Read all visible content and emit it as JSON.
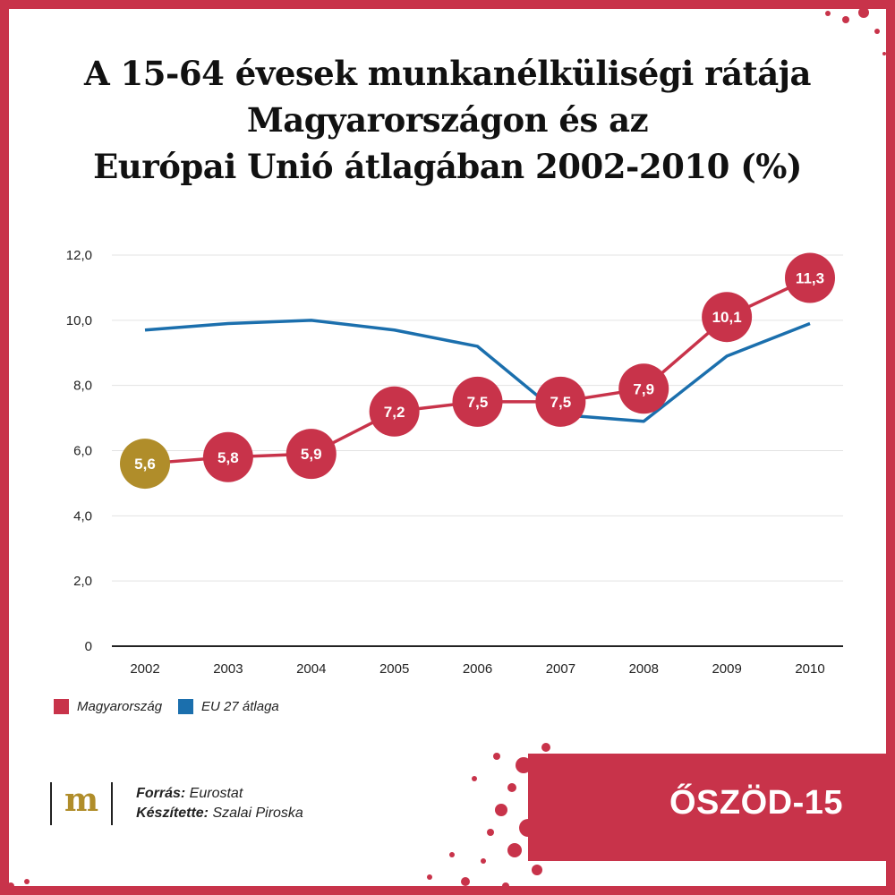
{
  "title": {
    "line1": "A 15-64 évesek munkanélküliségi rátája",
    "line2": "Magyarországon és az",
    "line3": "Európai Unió átlagában 2002-2010 (%)"
  },
  "colors": {
    "hungary": "#c8334a",
    "eu": "#1b6fad",
    "highlight": "#b08d2a",
    "frame": "#c8334a"
  },
  "chart_data": {
    "type": "line",
    "title": "A 15-64 évesek munkanélküliségi rátája Magyarországon és az Európai Unió átlagában 2002-2010 (%)",
    "x": [
      "2002",
      "2003",
      "2004",
      "2005",
      "2006",
      "2007",
      "2008",
      "2009",
      "2010"
    ],
    "ylim": [
      0,
      12
    ],
    "yticks": [
      0,
      2,
      4,
      6,
      8,
      10,
      12
    ],
    "ytick_labels": [
      "0",
      "2,0",
      "4,0",
      "6,0",
      "8,0",
      "10,0",
      "12,0"
    ],
    "grid": true,
    "legend_position": "bottom-left",
    "series": [
      {
        "name": "Magyarország",
        "values": [
          5.6,
          5.8,
          5.9,
          7.2,
          7.5,
          7.5,
          7.9,
          10.1,
          11.3
        ],
        "labels": [
          "5,6",
          "5,8",
          "5,9",
          "7,2",
          "7,5",
          "7,5",
          "7,9",
          "10,1",
          "11,3"
        ]
      },
      {
        "name": "EU 27 átlaga",
        "values": [
          9.7,
          9.9,
          10.0,
          9.7,
          9.2,
          7.1,
          6.9,
          8.9,
          9.9
        ]
      }
    ]
  },
  "legend": {
    "hungary_label": "Magyarország",
    "eu_label": "EU 27 átlaga"
  },
  "footer": {
    "logo_letter": "m",
    "source_label": "Forrás:",
    "source_value": "Eurostat",
    "author_label": "Készítette:",
    "author_value": "Szalai Piroska"
  },
  "badge": {
    "text": "ŐSZÖD-15"
  }
}
